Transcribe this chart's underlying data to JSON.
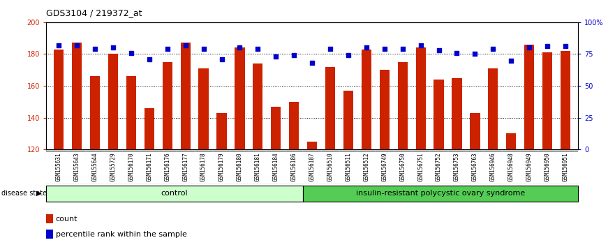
{
  "title": "GDS3104 / 219372_at",
  "samples": [
    "GSM155631",
    "GSM155643",
    "GSM155644",
    "GSM155729",
    "GSM156170",
    "GSM156171",
    "GSM156176",
    "GSM156177",
    "GSM156178",
    "GSM156179",
    "GSM156180",
    "GSM156181",
    "GSM156184",
    "GSM156186",
    "GSM156187",
    "GSM156510",
    "GSM156511",
    "GSM156512",
    "GSM156749",
    "GSM156750",
    "GSM156751",
    "GSM156752",
    "GSM156753",
    "GSM156763",
    "GSM156946",
    "GSM156948",
    "GSM156949",
    "GSM156950",
    "GSM156951"
  ],
  "counts": [
    183,
    187,
    166,
    180,
    166,
    146,
    175,
    187,
    171,
    143,
    184,
    174,
    147,
    150,
    125,
    172,
    157,
    183,
    170,
    175,
    184,
    164,
    165,
    143,
    171,
    130,
    186,
    181,
    182
  ],
  "percentiles": [
    82,
    82,
    79,
    80,
    76,
    71,
    79,
    82,
    79,
    71,
    80,
    79,
    73,
    74,
    68,
    79,
    74,
    80,
    79,
    79,
    82,
    78,
    76,
    75,
    79,
    70,
    80,
    81,
    81
  ],
  "control_count": 14,
  "disease_count": 15,
  "ylim_left": [
    120,
    200
  ],
  "ylim_right": [
    0,
    100
  ],
  "yticks_left": [
    120,
    140,
    160,
    180,
    200
  ],
  "yticks_right": [
    0,
    25,
    50,
    75,
    100
  ],
  "ytick_labels_right": [
    "0",
    "25",
    "50",
    "75",
    "100%"
  ],
  "bar_color": "#cc2200",
  "dot_color": "#0000cc",
  "control_label": "control",
  "disease_label": "insulin-resistant polycystic ovary syndrome",
  "control_bg": "#ccffcc",
  "disease_bg": "#55cc55",
  "legend_count_label": "count",
  "legend_pct_label": "percentile rank within the sample",
  "bg_color": "#ffffff",
  "plot_bg": "#ffffff"
}
